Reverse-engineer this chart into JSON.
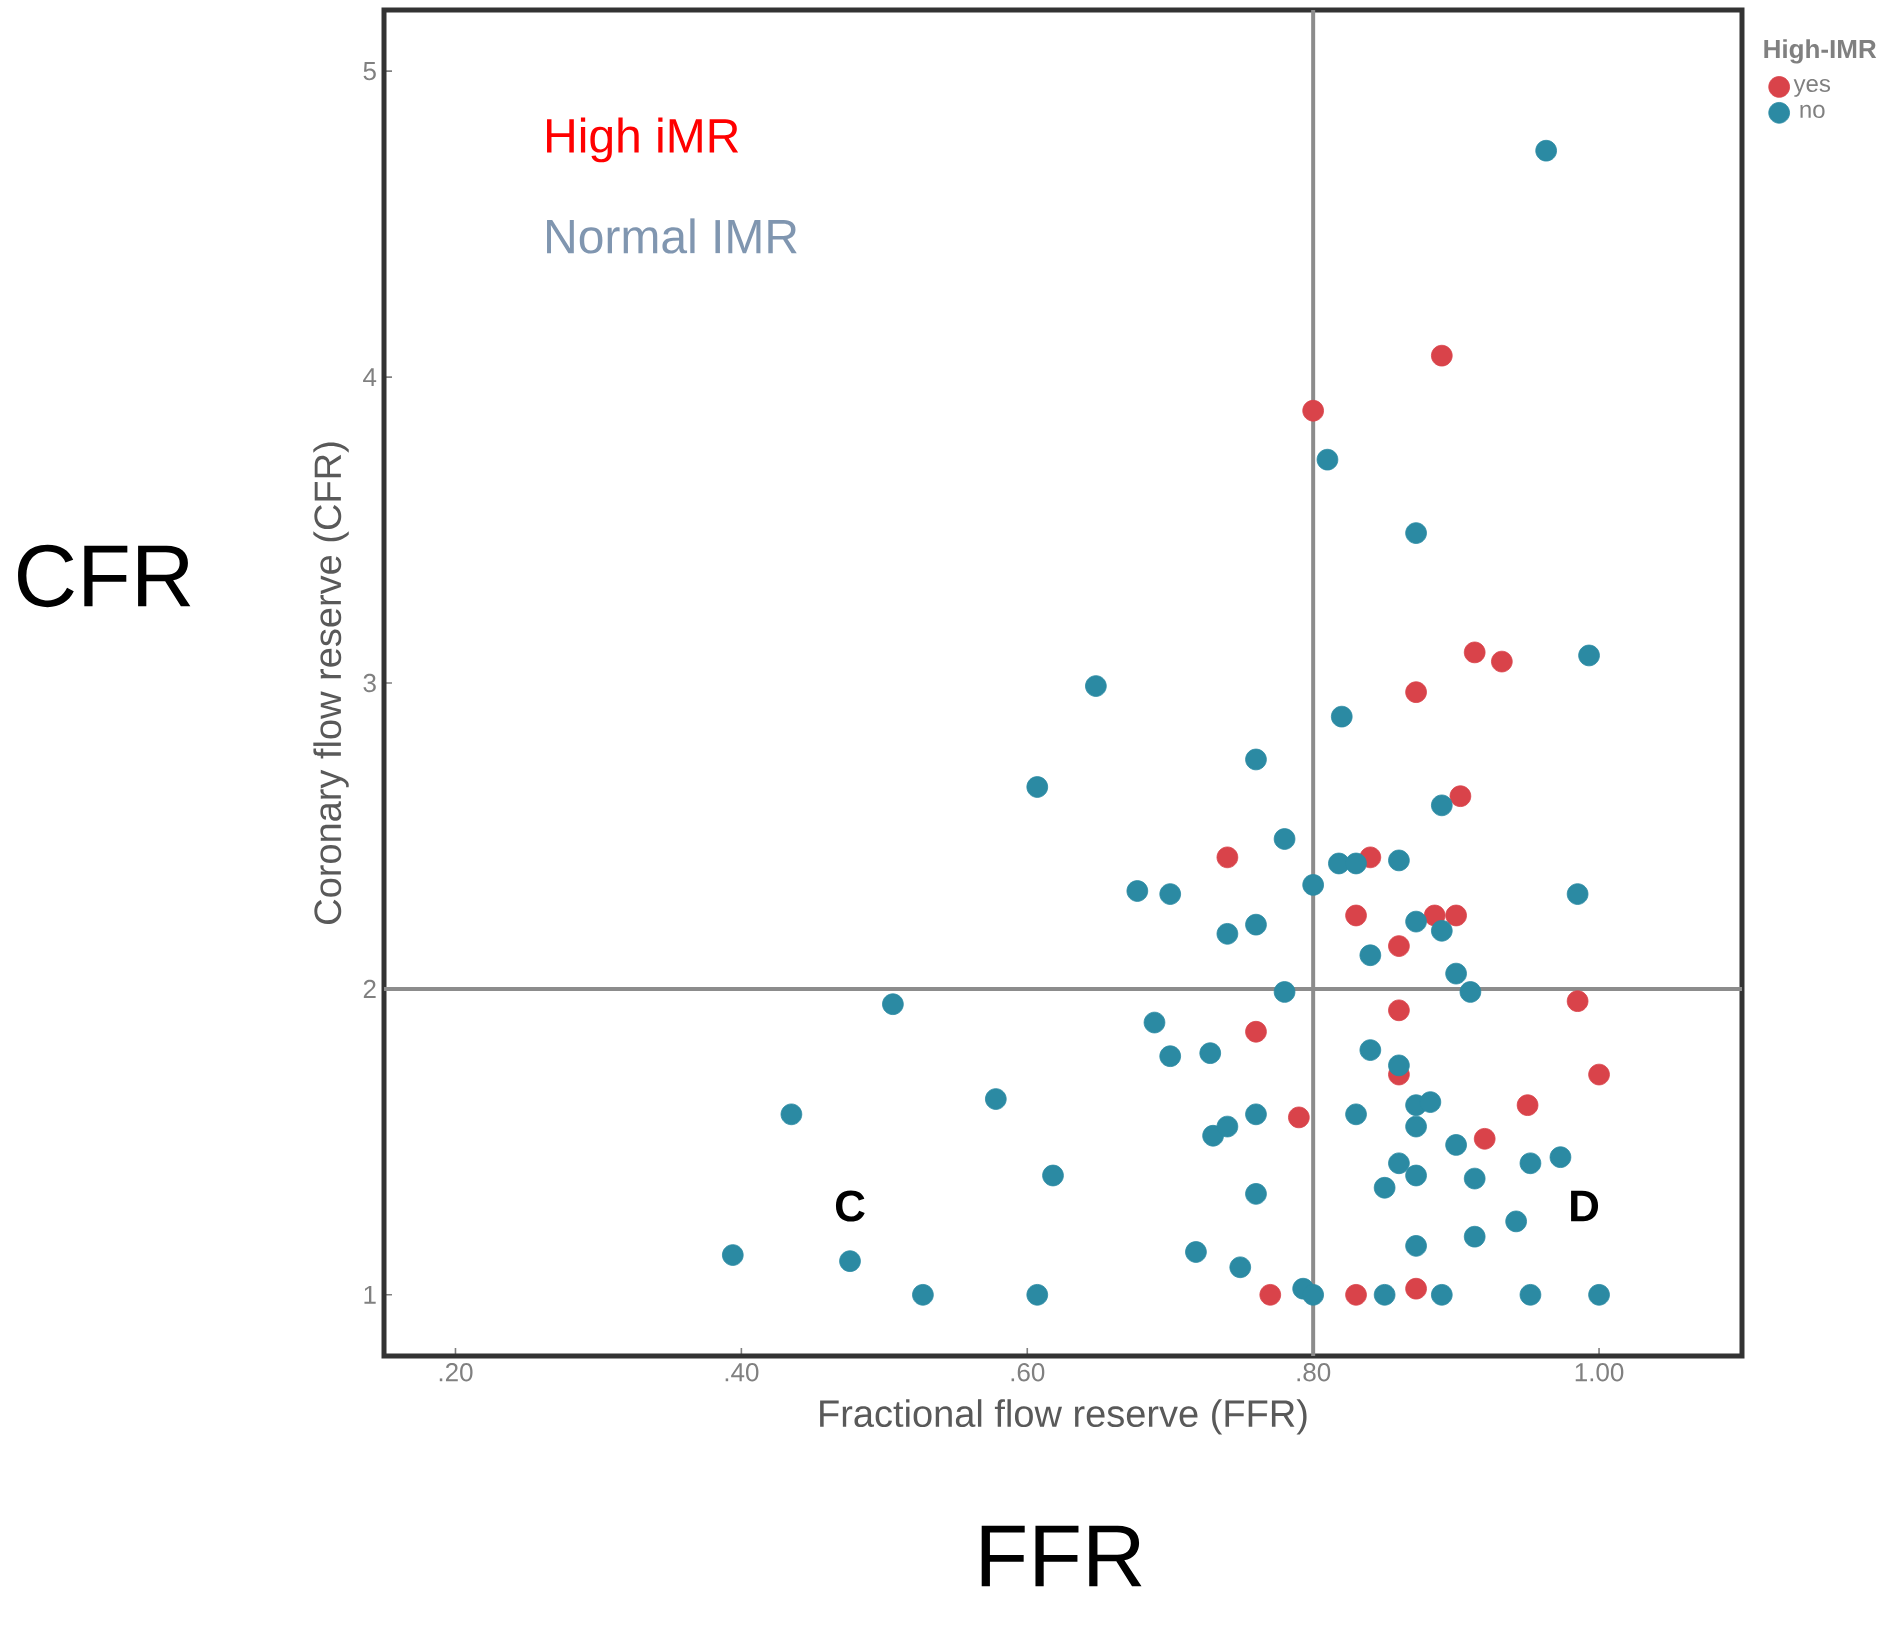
{
  "chart_data": {
    "type": "scatter",
    "xlabel": "Fractional flow reserve (FFR)",
    "ylabel": "Coronary flow reserve (CFR)",
    "legend_title": "High-IMR",
    "annotations": [
      "High iMR",
      "Normal IMR",
      "C",
      "D",
      "CFR",
      "FFR"
    ],
    "xlim": [
      0.15,
      1.1
    ],
    "ylim": [
      0.8,
      5.2
    ],
    "xticks": [
      {
        "value": 0.2,
        "label": ".20"
      },
      {
        "value": 0.4,
        "label": ".40"
      },
      {
        "value": 0.6,
        "label": ".60"
      },
      {
        "value": 0.8,
        "label": ".80"
      },
      {
        "value": 1.0,
        "label": "1.00"
      }
    ],
    "yticks": [
      1,
      2,
      3,
      4,
      5
    ],
    "ref_lines": [
      {
        "axis": "x",
        "value": 0.8,
        "color": "#8c8c8c"
      },
      {
        "axis": "y",
        "value": 2,
        "color": "#8c8c8c"
      }
    ],
    "grid": false,
    "legend": "right",
    "marker": "circle",
    "series": [
      {
        "name": "yes",
        "color": "#d9434a",
        "x": [
          0.89,
          0.8,
          0.913,
          0.932,
          0.872,
          0.903,
          0.74,
          0.84,
          0.83,
          0.885,
          0.9,
          0.86,
          0.985,
          0.86,
          0.76,
          0.86,
          1.0,
          0.95,
          0.79,
          0.92,
          0.77,
          0.83,
          0.872
        ],
        "values": [
          4.07,
          3.89,
          3.1,
          3.07,
          2.97,
          2.63,
          2.43,
          2.43,
          2.24,
          2.24,
          2.24,
          2.14,
          1.96,
          1.93,
          1.86,
          1.72,
          1.72,
          1.62,
          1.58,
          1.51,
          1.0,
          1.0,
          1.02
        ]
      },
      {
        "name": "no",
        "color": "#2b8aa3",
        "x": [
          0.963,
          0.81,
          0.872,
          0.993,
          0.82,
          0.76,
          0.648,
          0.607,
          0.78,
          0.677,
          0.7,
          0.74,
          0.76,
          0.8,
          0.506,
          0.78,
          0.689,
          0.7,
          0.728,
          0.435,
          0.578,
          0.76,
          0.73,
          0.74,
          0.618,
          0.76,
          0.718,
          0.749,
          0.394,
          0.476,
          0.527,
          0.607,
          0.793,
          0.8,
          0.89,
          0.818,
          0.83,
          0.86,
          0.985,
          0.872,
          0.89,
          0.84,
          0.9,
          0.91,
          0.84,
          0.86,
          0.83,
          0.872,
          0.882,
          0.872,
          0.9,
          0.973,
          0.952,
          0.86,
          0.872,
          0.85,
          0.913,
          0.942,
          0.913,
          0.872,
          0.85,
          0.89,
          0.952,
          1.0
        ],
        "values": [
          4.74,
          3.73,
          3.49,
          3.09,
          2.89,
          2.75,
          2.99,
          2.66,
          2.49,
          2.32,
          2.31,
          2.18,
          2.21,
          2.34,
          1.95,
          1.99,
          1.89,
          1.78,
          1.79,
          1.59,
          1.64,
          1.59,
          1.52,
          1.55,
          1.39,
          1.33,
          1.14,
          1.09,
          1.13,
          1.11,
          1.0,
          1.0,
          1.02,
          1.0,
          2.6,
          2.41,
          2.41,
          2.42,
          2.31,
          2.22,
          2.19,
          2.11,
          2.05,
          1.99,
          1.8,
          1.75,
          1.59,
          1.62,
          1.63,
          1.55,
          1.49,
          1.45,
          1.43,
          1.43,
          1.39,
          1.35,
          1.38,
          1.24,
          1.19,
          1.16,
          1.0,
          1.0,
          1.0,
          1.0
        ]
      }
    ]
  }
}
